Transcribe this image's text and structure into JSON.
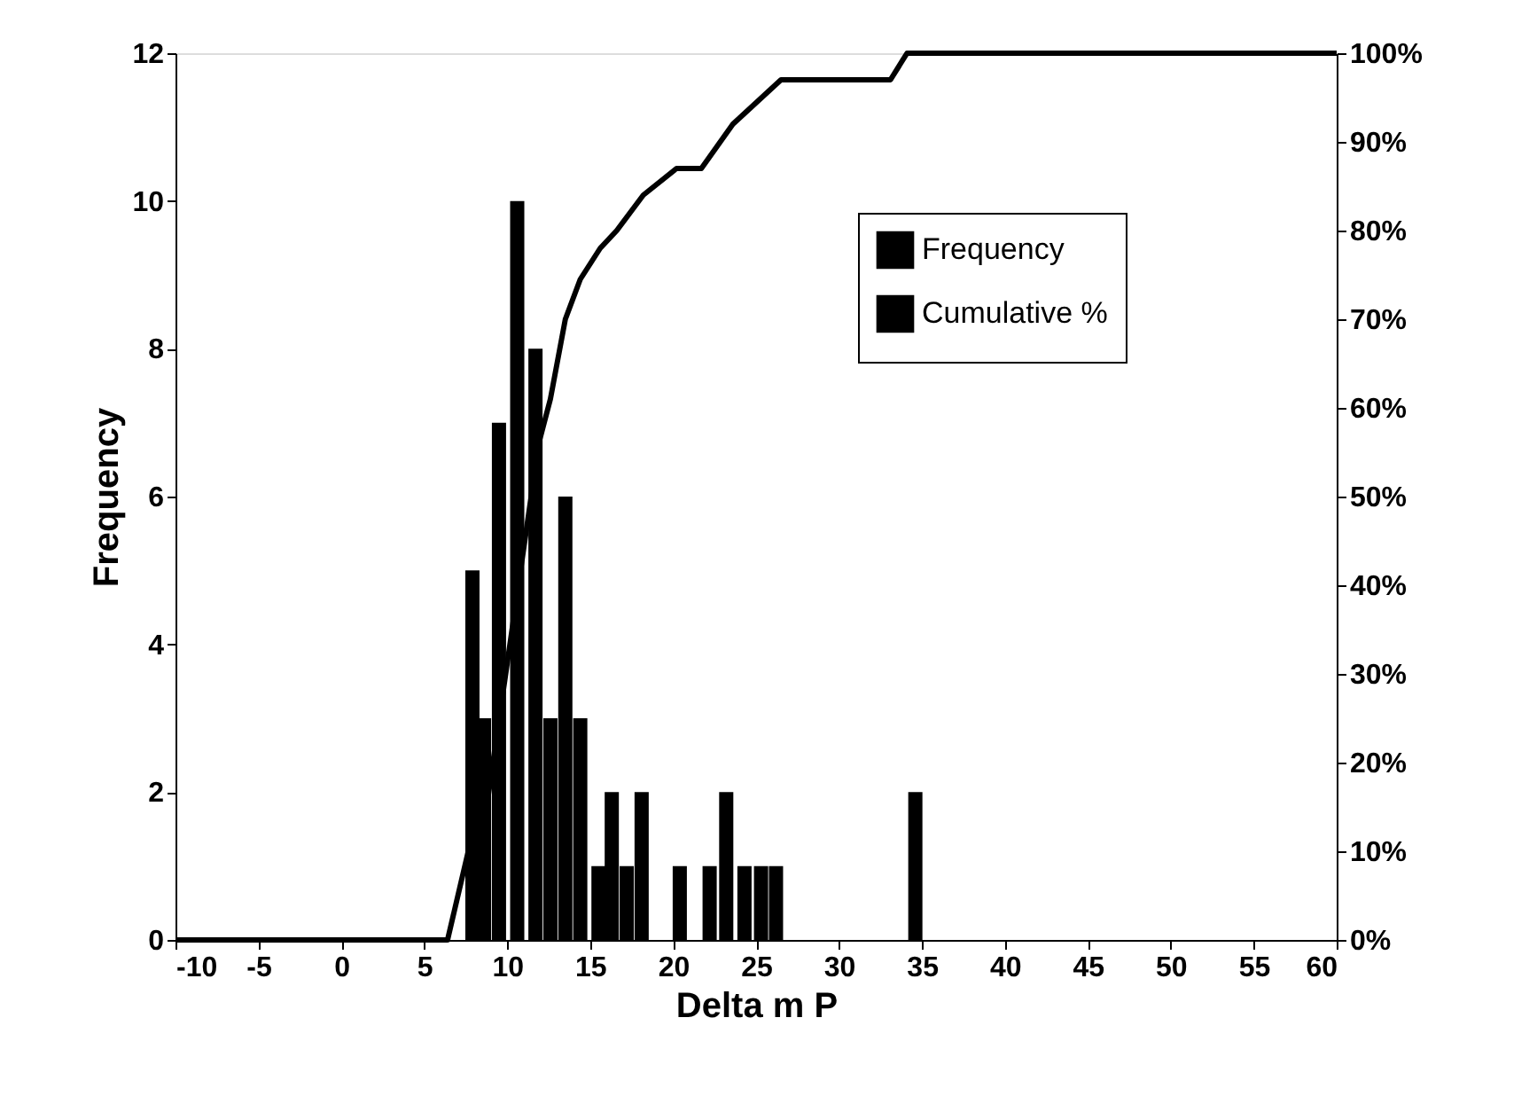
{
  "chart_data": {
    "type": "bar",
    "xlabel": "Delta m P",
    "ylabel": "Frequency",
    "legend": "top right",
    "grid": false,
    "xlim": [
      -10,
      60
    ],
    "xticks": [
      -10,
      -5,
      0,
      5,
      10,
      15,
      20,
      25,
      30,
      35,
      40,
      45,
      50,
      55,
      60
    ],
    "ylim": [
      0,
      12
    ],
    "yticks": [
      0,
      2,
      4,
      6,
      8,
      10,
      12
    ],
    "y2lim": [
      0,
      100
    ],
    "y2ticks": [
      {
        "value": 0,
        "label": "0%"
      },
      {
        "value": 10,
        "label": "10%"
      },
      {
        "value": 20,
        "label": "20%"
      },
      {
        "value": 30,
        "label": "30%"
      },
      {
        "value": 40,
        "label": "40%"
      },
      {
        "value": 50,
        "label": "50%"
      },
      {
        "value": 60,
        "label": "60%"
      },
      {
        "value": 70,
        "label": "70%"
      },
      {
        "value": 80,
        "label": "80%"
      },
      {
        "value": 90,
        "label": "90%"
      },
      {
        "value": 100,
        "label": "100%"
      }
    ],
    "series": [
      {
        "name": "Frequency",
        "color": "#000000",
        "x": [
          7.9,
          8.6,
          9.5,
          10.6,
          11.7,
          12.6,
          13.5,
          14.4,
          15.5,
          16.3,
          17.2,
          18.1,
          20.4,
          22.2,
          23.2,
          24.3,
          25.3,
          26.2,
          34.6
        ],
        "values": [
          5,
          3,
          7,
          10,
          8,
          3,
          6,
          3,
          1,
          2,
          1,
          2,
          1,
          1,
          2,
          1,
          1,
          1,
          2
        ]
      },
      {
        "name": "Cumulative %",
        "type": "line",
        "axis": "y2",
        "color": "#000000",
        "x": [
          -10,
          6.4,
          7.9,
          8.6,
          11.9,
          12.6,
          13.5,
          14.4,
          15.6,
          16.6,
          18.2,
          20.2,
          21.7,
          23.6,
          26.5,
          33.1,
          34.1,
          60
        ],
        "values": [
          0,
          0,
          12,
          13,
          56,
          61,
          70,
          74.5,
          78,
          80,
          84,
          87,
          87,
          92,
          97,
          97,
          100,
          100
        ]
      }
    ]
  }
}
